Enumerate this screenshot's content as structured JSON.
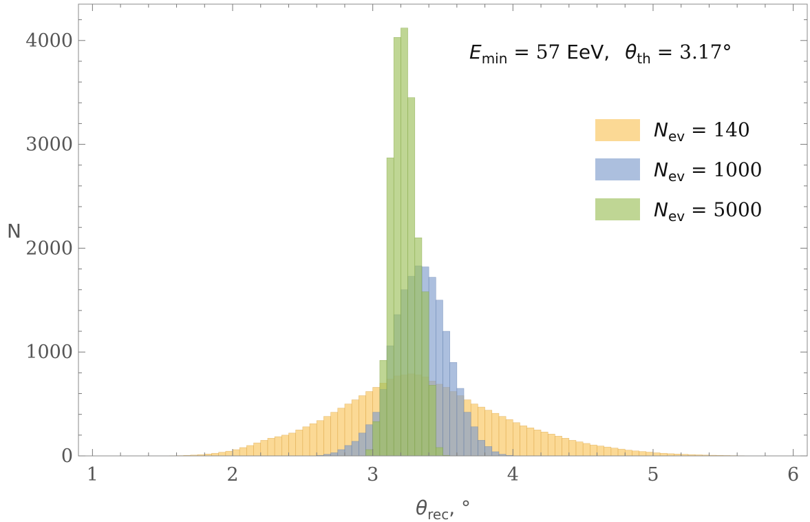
{
  "chart_data": {
    "type": "bar",
    "title": "",
    "xlabel": {
      "symbol": "θ",
      "subscript": "rec",
      "suffix": ", °"
    },
    "ylabel": "N",
    "xlim": [
      0.9,
      6.1
    ],
    "ylim": [
      0,
      4350
    ],
    "bin_width": 0.05,
    "xticks": [
      1,
      2,
      3,
      4,
      5,
      6
    ],
    "yticks": [
      0,
      1000,
      2000,
      3000,
      4000
    ],
    "grid": false,
    "legend_position": "top-right",
    "annotation": {
      "e_symbol": "E",
      "e_sub": "min",
      "e_eq": " = ",
      "e_value": "57",
      "e_unit": " EeV,",
      "th_symbol": "θ",
      "th_sub": "th",
      "th_eq": " = ",
      "th_value": "3.17°"
    },
    "series": [
      {
        "name": "N_ev = 140",
        "label_symbol": "N",
        "label_sub": "ev",
        "label_eq": " = ",
        "label_value": "140",
        "color": "#f9c45c",
        "stroke": "#d9a040",
        "x_start": 1.5,
        "values": [
          1,
          2,
          3,
          5,
          8,
          12,
          18,
          25,
          35,
          45,
          60,
          80,
          100,
          125,
          150,
          170,
          185,
          200,
          220,
          250,
          280,
          310,
          340,
          380,
          420,
          460,
          500,
          540,
          580,
          620,
          660,
          700,
          740,
          770,
          780,
          790,
          780,
          760,
          720,
          690,
          660,
          620,
          580,
          540,
          500,
          470,
          440,
          410,
          380,
          350,
          320,
          290,
          270,
          250,
          230,
          210,
          190,
          170,
          150,
          135,
          120,
          105,
          95,
          85,
          75,
          65,
          55,
          48,
          42,
          36,
          30,
          25,
          21,
          18,
          15,
          12,
          10,
          8,
          6,
          5,
          4,
          3,
          2,
          1
        ]
      },
      {
        "name": "N_ev = 1000",
        "label_symbol": "N",
        "label_sub": "ev",
        "label_eq": " = ",
        "label_value": "1000",
        "color": "#7f9dcd",
        "stroke": "#5f7dad",
        "x_start": 2.6,
        "values": [
          5,
          15,
          30,
          60,
          100,
          140,
          220,
          300,
          420,
          640,
          1060,
          1360,
          1600,
          1730,
          1830,
          1820,
          1720,
          1500,
          1200,
          900,
          650,
          420,
          280,
          150,
          90,
          40,
          15,
          5
        ]
      },
      {
        "name": "N_ev = 5000",
        "label_symbol": "N",
        "label_sub": "ev",
        "label_eq": " = ",
        "label_value": "5000",
        "color": "#9dc05a",
        "stroke": "#7da03a",
        "x_start": 2.95,
        "values": [
          60,
          330,
          920,
          2870,
          4030,
          4120,
          3450,
          2100,
          1580,
          680,
          80,
          5
        ]
      }
    ]
  }
}
